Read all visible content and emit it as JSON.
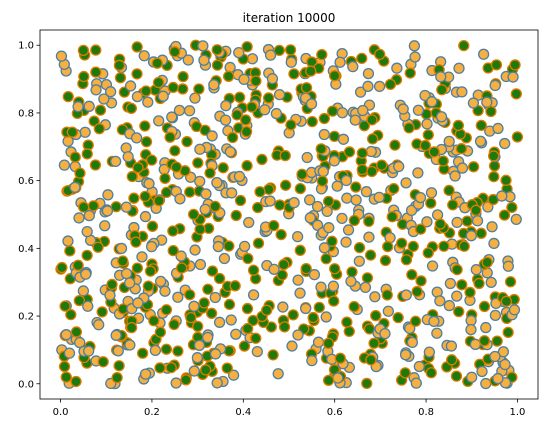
{
  "chart_data": {
    "type": "scatter",
    "title": "iteration 10000",
    "xlabel": "",
    "ylabel": "",
    "xlim": [
      -0.045,
      1.045
    ],
    "ylim": [
      -0.045,
      1.045
    ],
    "x_ticks": [
      "0.0",
      "0.2",
      "0.4",
      "0.6",
      "0.8",
      "1.0"
    ],
    "y_ticks": [
      "0.0",
      "0.2",
      "0.4",
      "0.6",
      "0.8",
      "1.0"
    ],
    "grid": false,
    "legend": "none",
    "n_points": 1000,
    "sampling": "uniform on [0,1] x [0,1]",
    "seed": 10000,
    "green_fraction": 0.5,
    "colors": {
      "orange_fill": "#f5b041",
      "orange_edge": "#4f7f9f",
      "green_fill": "#1e7b0b",
      "green_edge": "#e07b00",
      "axes": "#000000"
    }
  }
}
